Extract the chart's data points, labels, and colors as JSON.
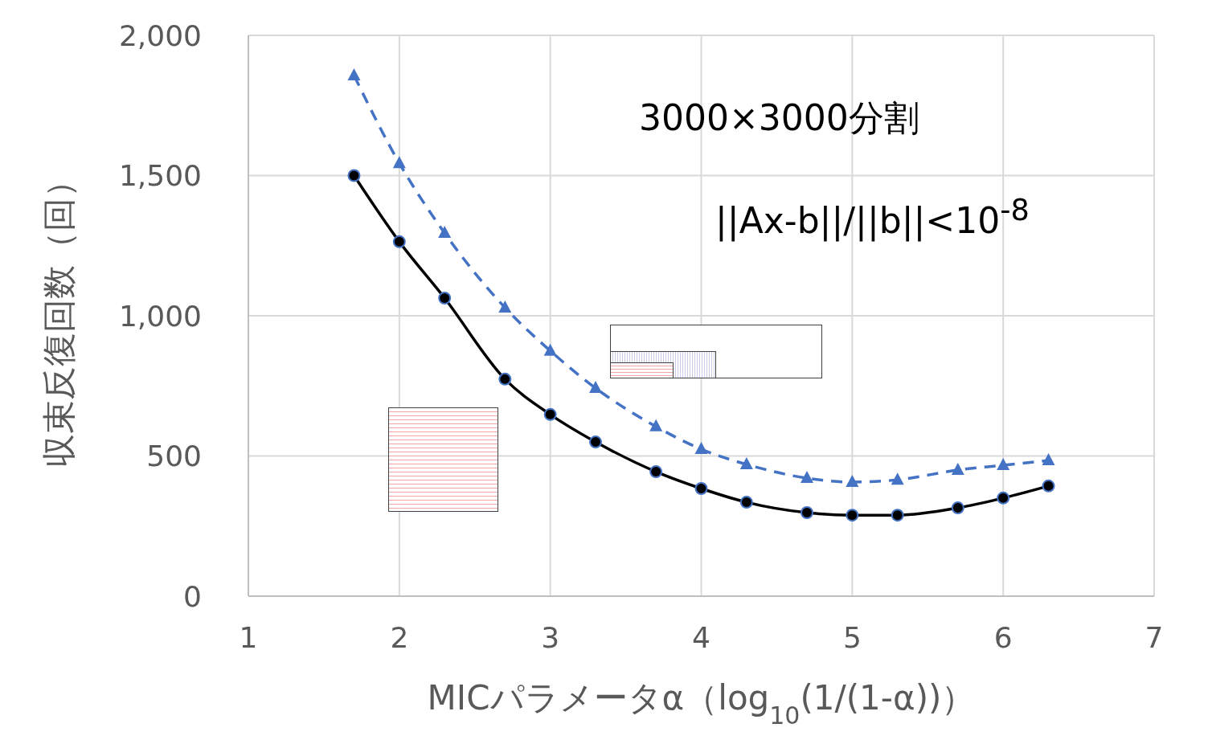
{
  "chart_data": {
    "type": "line",
    "xlabel": "MICパラメータα（log$_{10}$(1/(1-α))）",
    "ylabel": "収束反復回数（回）",
    "x": [
      1.7,
      2,
      2.3,
      2.7,
      3,
      3.3,
      3.7,
      4,
      4.3,
      4.7,
      5,
      5.3,
      5.7,
      6,
      6.3
    ],
    "series": [
      {
        "color": "#000000",
        "marker": "circle",
        "line_style": "solid",
        "values": [
          1500,
          1264,
          1063,
          774,
          648,
          550,
          444,
          384,
          335,
          298,
          289,
          289,
          315,
          350,
          393
        ]
      },
      {
        "color": "#4472c4",
        "marker": "triangle",
        "line_style": "dashed",
        "values": [
          1857,
          1544,
          1295,
          1029,
          875,
          742,
          605,
          524,
          470,
          421,
          407,
          415,
          450,
          467,
          484
        ]
      }
    ],
    "xlim": [
      1,
      7
    ],
    "xticks": [
      1,
      2,
      3,
      4,
      5,
      6,
      7
    ],
    "ylim": [
      0,
      2000
    ],
    "yticks": [
      0,
      {
        "value": 500,
        "label": "500"
      },
      {
        "value": 1000,
        "label": "1,000"
      },
      {
        "value": 1500,
        "label": "1,500"
      },
      {
        "value": 2000,
        "label": "2,000"
      }
    ],
    "grid": true,
    "legend": false,
    "annotations": [
      "3000×3000分割",
      "||Ax-b||/||b||<10$^{-8}$"
    ]
  }
}
